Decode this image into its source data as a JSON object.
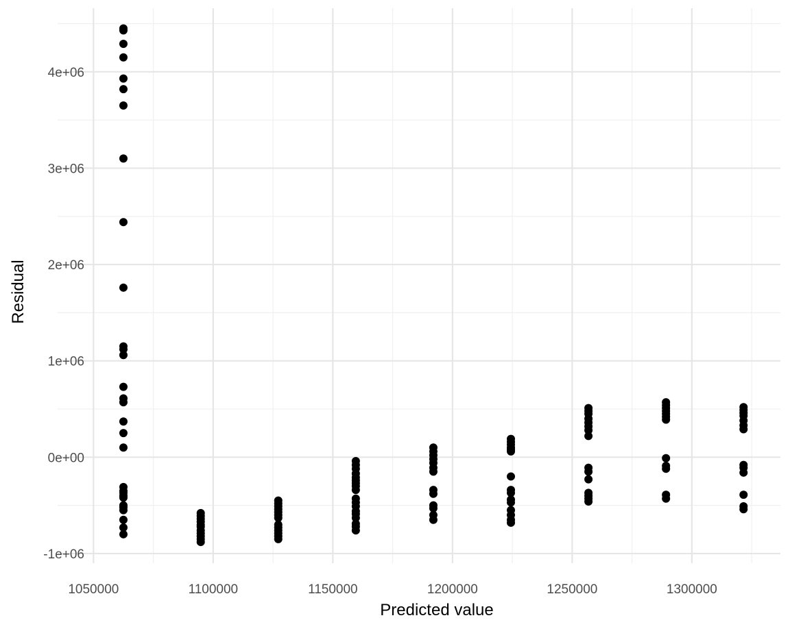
{
  "chart_data": {
    "type": "scatter",
    "title": "",
    "xlabel": "Predicted value",
    "ylabel": "Residual",
    "xlim": [
      1035000,
      1337000
    ],
    "ylim": [
      -1100000,
      4660000
    ],
    "x_ticks": [
      1050000,
      1100000,
      1150000,
      1200000,
      1250000,
      1300000
    ],
    "x_tick_labels": [
      "1050000",
      "1100000",
      "1150000",
      "1200000",
      "1250000",
      "1300000"
    ],
    "y_ticks": [
      -1000000,
      0,
      1000000,
      2000000,
      3000000,
      4000000
    ],
    "y_tick_labels": [
      "-1e+06",
      "0e+00",
      "1e+06",
      "2e+06",
      "3e+06",
      "4e+06"
    ],
    "grid": true,
    "point_color": "#000000",
    "groups": [
      {
        "x": 1062500,
        "y": [
          4450000,
          4430000,
          4290000,
          4150000,
          3930000,
          3820000,
          3650000,
          3100000,
          2440000,
          1760000,
          1150000,
          1120000,
          1060000,
          730000,
          610000,
          570000,
          370000,
          250000,
          100000,
          -310000,
          -350000,
          -370000,
          -400000,
          -420000,
          -500000,
          -520000,
          -550000,
          -650000,
          -730000,
          -800000
        ]
      },
      {
        "x": 1094800,
        "y": [
          -580000,
          -610000,
          -640000,
          -670000,
          -700000,
          -720000,
          -760000,
          -790000,
          -820000,
          -850000,
          -880000
        ]
      },
      {
        "x": 1127200,
        "y": [
          -450000,
          -480000,
          -510000,
          -540000,
          -570000,
          -600000,
          -630000,
          -700000,
          -730000,
          -760000,
          -790000,
          -820000,
          -850000
        ]
      },
      {
        "x": 1159600,
        "y": [
          -40000,
          -80000,
          -120000,
          -170000,
          -210000,
          -240000,
          -270000,
          -300000,
          -340000,
          -430000,
          -470000,
          -510000,
          -560000,
          -590000,
          -630000,
          -690000,
          -720000,
          -760000
        ]
      },
      {
        "x": 1192000,
        "y": [
          100000,
          60000,
          20000,
          -20000,
          -60000,
          -110000,
          -150000,
          -340000,
          -380000,
          -500000,
          -530000,
          -600000,
          -650000
        ]
      },
      {
        "x": 1224400,
        "y": [
          190000,
          160000,
          130000,
          100000,
          80000,
          60000,
          -200000,
          -340000,
          -370000,
          -440000,
          -470000,
          -550000,
          -600000,
          -650000,
          -680000
        ]
      },
      {
        "x": 1256800,
        "y": [
          510000,
          480000,
          450000,
          400000,
          360000,
          320000,
          280000,
          220000,
          -110000,
          -150000,
          -230000,
          -370000,
          -400000,
          -430000,
          -460000
        ]
      },
      {
        "x": 1289200,
        "y": [
          570000,
          540000,
          510000,
          480000,
          450000,
          420000,
          390000,
          -10000,
          -90000,
          -120000,
          -390000,
          -430000
        ]
      },
      {
        "x": 1321600,
        "y": [
          520000,
          490000,
          460000,
          430000,
          380000,
          330000,
          290000,
          -80000,
          -110000,
          -160000,
          -390000,
          -510000,
          -540000
        ]
      }
    ]
  }
}
